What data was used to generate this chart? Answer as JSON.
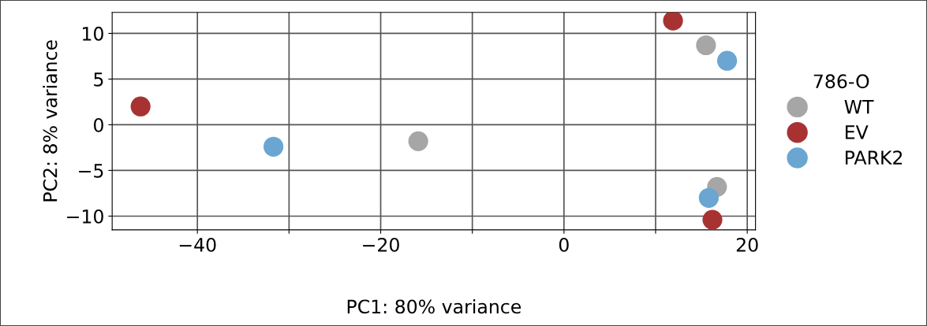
{
  "chart_data": {
    "type": "scatter",
    "xlabel": "PC1: 80% variance",
    "ylabel": "PC2: 8% variance",
    "legend_title": "786-O",
    "series": [
      {
        "name": "WT",
        "color": "#a6a6a6",
        "x": [
          -15.9,
          15.5,
          16.7
        ],
        "values": [
          -1.8,
          8.7,
          -6.8
        ]
      },
      {
        "name": "EV",
        "color": "#a83232",
        "x": [
          -46.2,
          11.9,
          16.2
        ],
        "values": [
          2.0,
          11.4,
          -10.4
        ]
      },
      {
        "name": "PARK2",
        "color": "#6aa6d1",
        "x": [
          -31.7,
          17.8,
          15.8
        ],
        "values": [
          -2.4,
          7.0,
          -8.0
        ]
      }
    ],
    "xlim": [
      -49.3,
      20.9
    ],
    "ylim": [
      -11.5,
      12.3
    ],
    "xticks": [
      -40,
      {
        "value": -30,
        "label": null
      },
      -20,
      {
        "value": -10,
        "label": null
      },
      0,
      {
        "value": 10,
        "label": null
      },
      20
    ],
    "yticks": [
      -10,
      -5,
      0,
      5,
      10
    ],
    "grid": true,
    "legend": "right",
    "marker": "circle"
  }
}
